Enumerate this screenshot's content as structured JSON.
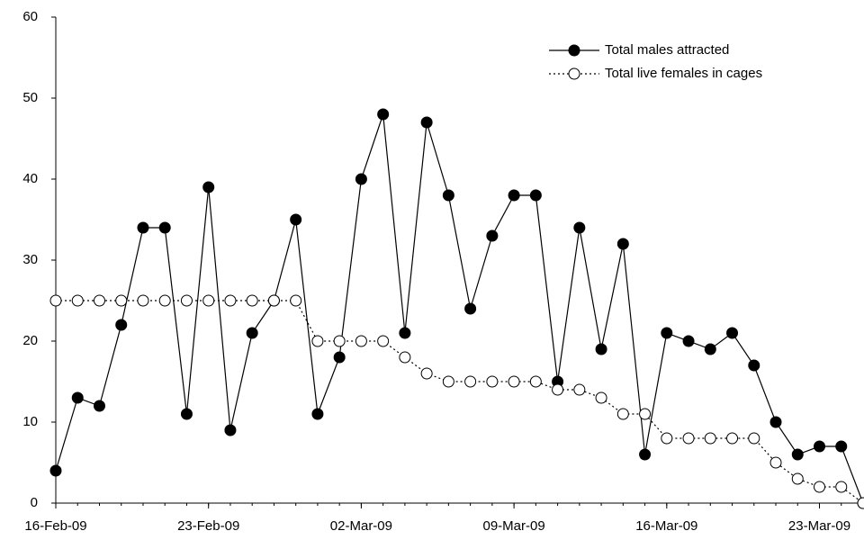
{
  "chart_data": {
    "type": "line",
    "x": [
      "16-Feb-09",
      "17-Feb-09",
      "18-Feb-09",
      "19-Feb-09",
      "20-Feb-09",
      "21-Feb-09",
      "22-Feb-09",
      "23-Feb-09",
      "24-Feb-09",
      "25-Feb-09",
      "26-Feb-09",
      "27-Feb-09",
      "28-Feb-09",
      "01-Mar-09",
      "02-Mar-09",
      "03-Mar-09",
      "04-Mar-09",
      "05-Mar-09",
      "06-Mar-09",
      "07-Mar-09",
      "08-Mar-09",
      "09-Mar-09",
      "10-Mar-09",
      "11-Mar-09",
      "12-Mar-09",
      "13-Mar-09",
      "14-Mar-09",
      "15-Mar-09",
      "16-Mar-09",
      "17-Mar-09",
      "18-Mar-09",
      "19-Mar-09",
      "20-Mar-09",
      "21-Mar-09",
      "22-Mar-09",
      "23-Mar-09",
      "24-Mar-09",
      "25-Mar-09"
    ],
    "series": [
      {
        "name": "Total males attracted",
        "color": "#000000",
        "marker": "filled",
        "dash": "solid",
        "values": [
          4,
          13,
          12,
          22,
          34,
          34,
          11,
          39,
          9,
          21,
          25,
          35,
          11,
          18,
          40,
          48,
          21,
          47,
          38,
          24,
          33,
          38,
          38,
          15,
          34,
          19,
          32,
          6,
          21,
          20,
          19,
          21,
          17,
          10,
          6,
          7,
          7,
          0
        ]
      },
      {
        "name": "Total live females in cages",
        "color": "#000000",
        "marker": "open",
        "dash": "dotted",
        "values": [
          25,
          25,
          25,
          25,
          25,
          25,
          25,
          25,
          25,
          25,
          25,
          25,
          20,
          20,
          20,
          20,
          18,
          16,
          15,
          15,
          15,
          15,
          15,
          14,
          14,
          13,
          11,
          11,
          8,
          8,
          8,
          8,
          8,
          5,
          3,
          2,
          2,
          0
        ]
      }
    ],
    "xlim": [
      "16-Feb-09",
      "25-Mar-09"
    ],
    "xticks": [
      "16-Feb-09",
      "23-Feb-09",
      "02-Mar-09",
      "09-Mar-09",
      "16-Mar-09",
      "23-Mar-09"
    ],
    "ylim": [
      0,
      60
    ],
    "yticks": [
      0,
      10,
      20,
      30,
      40,
      50,
      60
    ],
    "legend": "top-right",
    "grid": false
  }
}
